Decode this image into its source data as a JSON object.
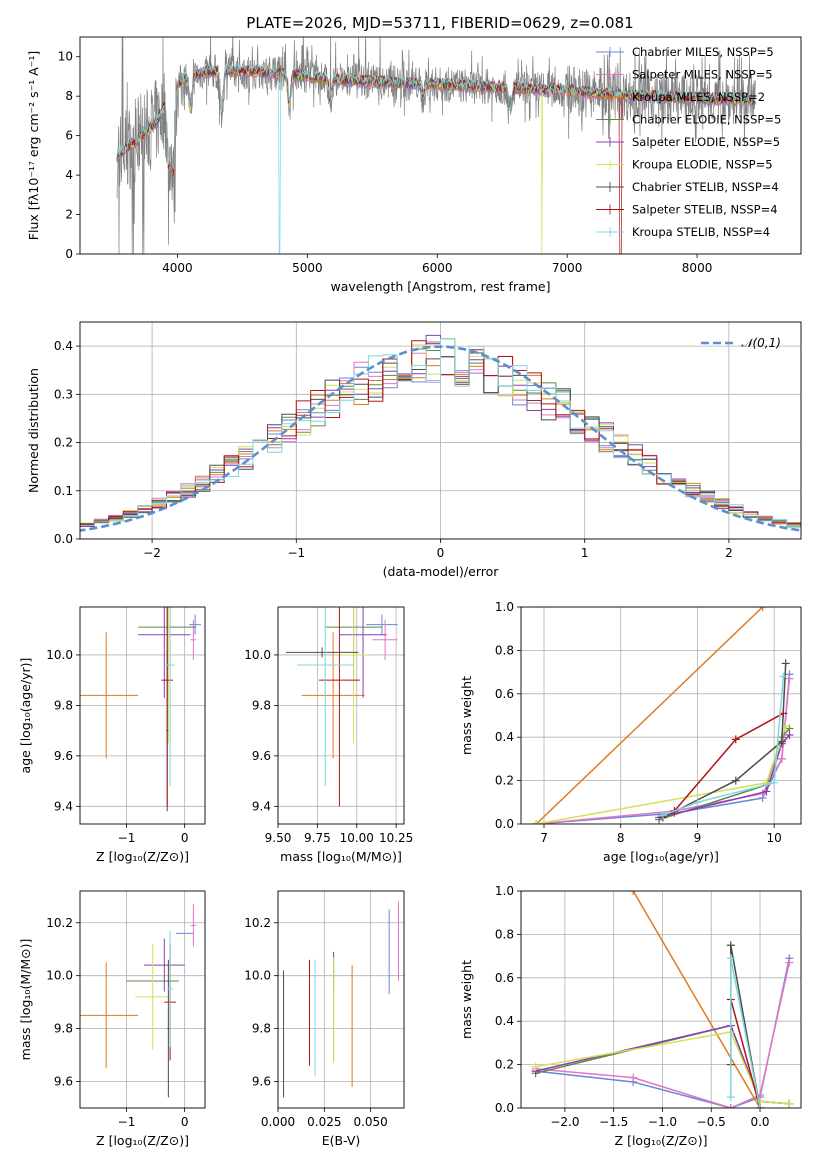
{
  "figure_title": "PLATE=2026, MJD=53711, FIBERID=0629, z=0.081",
  "colors": {
    "Chabrier MILES": "#6a86d8",
    "Salpeter MILES": "#e377c2",
    "Kroupa MILES": "#e07a1f",
    "Chabrier ELODIE": "#5a8a4a",
    "Salpeter ELODIE": "#8a3fb0",
    "Kroupa ELODIE": "#d4e157",
    "Chabrier STELIB": "#4d4d4d",
    "Salpeter STELIB": "#b0141a",
    "Kroupa STELIB": "#7fd6dc",
    "data": "#808080",
    "normal": "#5b8fd0"
  },
  "chart_data": [
    {
      "id": "spectrum",
      "type": "line",
      "xlabel": "wavelength [Angstrom, rest frame]",
      "ylabel": "Flux [fλ10⁻¹⁷ erg cm⁻² s⁻¹ A⁻¹]",
      "xlim": [
        3250,
        8800
      ],
      "ylim": [
        0,
        11
      ],
      "xticks": [
        4000,
        5000,
        6000,
        7000,
        8000
      ],
      "yticks": [
        0,
        2,
        4,
        6,
        8,
        10
      ],
      "legend_position": "top-right",
      "legend": [
        "Chabrier MILES, NSSP=5",
        "Salpeter MILES, NSSP=5",
        "Kroupa MILES, NSSP=2",
        "Chabrier ELODIE, NSSP=5",
        "Salpeter ELODIE, NSSP=5",
        "Kroupa ELODIE, NSSP=5",
        "Chabrier STELIB, NSSP=4",
        "Salpeter STELIB, NSSP=4",
        "Kroupa STELIB, NSSP=4"
      ],
      "legend_models": [
        "Chabrier MILES",
        "Salpeter MILES",
        "Kroupa MILES",
        "Chabrier ELODIE",
        "Salpeter ELODIE",
        "Kroupa ELODIE",
        "Chabrier STELIB",
        "Salpeter STELIB",
        "Kroupa STELIB"
      ],
      "continuum": [
        [
          3530,
          5.0
        ],
        [
          3700,
          5.8
        ],
        [
          3850,
          6.8
        ],
        [
          3950,
          8.2
        ],
        [
          4050,
          8.9
        ],
        [
          4200,
          9.2
        ],
        [
          4400,
          9.3
        ],
        [
          4700,
          9.2
        ],
        [
          5000,
          9.0
        ],
        [
          5300,
          8.8
        ],
        [
          5600,
          8.7
        ],
        [
          6000,
          8.6
        ],
        [
          6300,
          8.5
        ],
        [
          6600,
          8.4
        ],
        [
          7000,
          8.3
        ],
        [
          7300,
          8.1
        ],
        [
          7600,
          8.0
        ],
        [
          8000,
          7.9
        ],
        [
          8450,
          7.8
        ]
      ],
      "dips": [
        [
          3933,
          4.0
        ],
        [
          3968,
          3.6
        ],
        [
          4101,
          7.2
        ],
        [
          4340,
          7.0
        ],
        [
          4861,
          7.4
        ],
        [
          5175,
          7.8
        ],
        [
          5890,
          8.0
        ],
        [
          6563,
          7.2
        ]
      ],
      "gaps": {
        "Kroupa STELIB": [
          4780,
          4790
        ],
        "Kroupa ELODIE": [
          6800,
          6810
        ],
        "Salpeter STELIB": [
          7400,
          7420
        ]
      }
    },
    {
      "id": "residuals",
      "type": "area",
      "xlabel": "(data-model)/error",
      "ylabel": "Normed distribution",
      "xlim": [
        -2.5,
        2.5
      ],
      "ylim": [
        0,
        0.45
      ],
      "xticks": [
        -2,
        -1,
        0,
        1,
        2
      ],
      "yticks": [
        0.0,
        0.1,
        0.2,
        0.3,
        0.4
      ],
      "legend_position": "top-right",
      "legend": [
        "𝒩(0,1)"
      ],
      "bin_width": 0.1
    },
    {
      "id": "age_vs_Z",
      "type": "scatter",
      "xlabel": "Z [log₁₀(Z/Z⊙)]",
      "ylabel": "age  [log₁₀(age/yr)]",
      "xlim": [
        -1.8,
        0.35
      ],
      "ylim": [
        9.33,
        10.19
      ],
      "xticks": [
        -1,
        0
      ],
      "yticks": [
        9.4,
        9.6,
        9.8,
        10.0
      ],
      "points": [
        {
          "model": "Chabrier MILES",
          "x": 0.18,
          "y": 10.12,
          "xerr": 0.1,
          "yerr": 0.04
        },
        {
          "model": "Salpeter MILES",
          "x": 0.15,
          "y": 10.06,
          "xerr": 0.05,
          "yerr": 0.08
        },
        {
          "model": "Kroupa MILES",
          "x": -1.35,
          "y": 9.84,
          "xerr": 0.55,
          "yerr": 0.25
        },
        {
          "model": "Chabrier ELODIE",
          "x": -0.3,
          "y": 10.11,
          "xerr": 0.5,
          "yerr": 0.2
        },
        {
          "model": "Salpeter ELODIE",
          "x": -0.35,
          "y": 10.08,
          "xerr": 0.45,
          "yerr": 0.25
        },
        {
          "model": "Kroupa ELODIE",
          "x": -0.28,
          "y": 10.0,
          "xerr": 0.05,
          "yerr": 0.35
        },
        {
          "model": "Chabrier STELIB",
          "x": -0.3,
          "y": 9.7,
          "xerr": 0.02,
          "yerr": 0.32
        },
        {
          "model": "Salpeter STELIB",
          "x": -0.3,
          "y": 9.9,
          "xerr": 0.1,
          "yerr": 0.5
        },
        {
          "model": "Kroupa STELIB",
          "x": -0.25,
          "y": 9.96,
          "xerr": 0.08,
          "yerr": 0.48
        }
      ]
    },
    {
      "id": "age_vs_mass",
      "type": "scatter",
      "xlabel": "mass [log₁₀(M/M⊙)]",
      "ylabel": "",
      "xlim": [
        9.5,
        10.3
      ],
      "ylim": [
        9.33,
        10.19
      ],
      "xticks": [
        9.5,
        9.75,
        10.0,
        10.25
      ],
      "xticklabels": [
        "9.50",
        "9.75",
        "10.00",
        "10.25"
      ],
      "yticks": [
        9.4,
        9.6,
        9.8,
        10.0
      ],
      "points": [
        {
          "model": "Chabrier MILES",
          "x": 10.16,
          "y": 10.12,
          "xerr": 0.1,
          "yerr": 0.04
        },
        {
          "model": "Salpeter MILES",
          "x": 10.18,
          "y": 10.06,
          "xerr": 0.08,
          "yerr": 0.08
        },
        {
          "model": "Kroupa MILES",
          "x": 9.85,
          "y": 9.84,
          "xerr": 0.2,
          "yerr": 0.25
        },
        {
          "model": "Chabrier ELODIE",
          "x": 9.98,
          "y": 10.11,
          "xerr": 0.18,
          "yerr": 0.2
        },
        {
          "model": "Salpeter ELODIE",
          "x": 10.04,
          "y": 10.08,
          "xerr": 0.15,
          "yerr": 0.25
        },
        {
          "model": "Kroupa ELODIE",
          "x": 9.98,
          "y": 10.0,
          "xerr": 0.1,
          "yerr": 0.35
        },
        {
          "model": "Chabrier STELIB",
          "x": 9.78,
          "y": 10.01,
          "xerr": 0.23,
          "yerr": 0.02
        },
        {
          "model": "Salpeter STELIB",
          "x": 9.89,
          "y": 9.9,
          "xerr": 0.13,
          "yerr": 0.5
        },
        {
          "model": "Kroupa STELIB",
          "x": 9.8,
          "y": 9.96,
          "xerr": 0.18,
          "yerr": 0.48
        }
      ]
    },
    {
      "id": "mass_weight_vs_age",
      "type": "line",
      "xlabel": "age  [log₁₀(age/yr)]",
      "ylabel": "mass weight",
      "xlim": [
        6.7,
        10.35
      ],
      "ylim": [
        0,
        1
      ],
      "xticks": [
        7,
        8,
        9,
        10
      ],
      "yticks": [
        0.0,
        0.2,
        0.4,
        0.6,
        0.8,
        1.0
      ],
      "series": [
        {
          "model": "Chabrier MILES",
          "x": [
            6.9,
            8.7,
            9.85,
            10.1,
            10.2
          ],
          "y": [
            0.0,
            0.05,
            0.12,
            0.3,
            0.69
          ]
        },
        {
          "model": "Salpeter MILES",
          "x": [
            6.9,
            8.7,
            9.85,
            10.1,
            10.2
          ],
          "y": [
            0.0,
            0.06,
            0.14,
            0.3,
            0.67
          ]
        },
        {
          "model": "Kroupa MILES",
          "x": [
            6.9,
            9.85
          ],
          "y": [
            0.0,
            1.0
          ]
        },
        {
          "model": "Chabrier ELODIE",
          "x": [
            8.5,
            9.9,
            10.1,
            10.2
          ],
          "y": [
            0.02,
            0.18,
            0.4,
            0.44
          ]
        },
        {
          "model": "Salpeter ELODIE",
          "x": [
            8.5,
            9.9,
            10.1,
            10.2
          ],
          "y": [
            0.03,
            0.15,
            0.37,
            0.41
          ]
        },
        {
          "model": "Kroupa ELODIE",
          "x": [
            6.9,
            9.9,
            10.05,
            10.15
          ],
          "y": [
            0.0,
            0.19,
            0.35,
            0.45
          ]
        },
        {
          "model": "Chabrier STELIB",
          "x": [
            8.55,
            9.5,
            10.1,
            10.15
          ],
          "y": [
            0.03,
            0.2,
            0.38,
            0.74
          ]
        },
        {
          "model": "Salpeter STELIB",
          "x": [
            8.7,
            9.5,
            10.12
          ],
          "y": [
            0.06,
            0.39,
            0.51
          ]
        },
        {
          "model": "Kroupa STELIB",
          "x": [
            8.55,
            9.0,
            10.0,
            10.12
          ],
          "y": [
            0.04,
            0.1,
            0.19,
            0.68
          ]
        }
      ]
    },
    {
      "id": "mass_vs_Z",
      "type": "scatter",
      "xlabel": "Z [log₁₀(Z/Z⊙)]",
      "ylabel": "mass [log₁₀(M/M⊙)]",
      "xlim": [
        -1.8,
        0.35
      ],
      "ylim": [
        9.5,
        10.32
      ],
      "xticks": [
        -1,
        0
      ],
      "yticks": [
        9.6,
        9.8,
        10.0,
        10.2
      ],
      "points": [
        {
          "model": "Chabrier MILES",
          "x": 0.0,
          "y": 10.16,
          "xerr": 0.15,
          "yerr": 0.0
        },
        {
          "model": "Salpeter MILES",
          "x": 0.15,
          "y": 10.19,
          "xerr": 0.05,
          "yerr": 0.08
        },
        {
          "model": "Kroupa MILES",
          "x": -1.35,
          "y": 9.85,
          "xerr": 0.55,
          "yerr": 0.2
        },
        {
          "model": "Chabrier ELODIE",
          "x": -0.55,
          "y": 9.98,
          "xerr": 0.45,
          "yerr": 0.0
        },
        {
          "model": "Salpeter ELODIE",
          "x": -0.35,
          "y": 10.04,
          "xerr": 0.35,
          "yerr": 0.1
        },
        {
          "model": "Kroupa ELODIE",
          "x": -0.55,
          "y": 9.92,
          "xerr": 0.3,
          "yerr": 0.2
        },
        {
          "model": "Chabrier STELIB",
          "x": -0.28,
          "y": 9.8,
          "xerr": 0.02,
          "yerr": 0.26
        },
        {
          "model": "Salpeter STELIB",
          "x": -0.25,
          "y": 9.9,
          "xerr": 0.1,
          "yerr": 0.22
        },
        {
          "model": "Kroupa STELIB",
          "x": -0.25,
          "y": 9.95,
          "xerr": 0.05,
          "yerr": 0.22
        }
      ]
    },
    {
      "id": "mass_vs_ebv",
      "type": "scatter",
      "xlabel": "E(B-V)",
      "ylabel": "",
      "xlim": [
        0.0,
        0.068
      ],
      "ylim": [
        9.5,
        10.32
      ],
      "xticks": [
        0.0,
        0.025,
        0.05
      ],
      "xticklabels": [
        "0.000",
        "0.025",
        "0.050"
      ],
      "yticks": [
        9.6,
        9.8,
        10.0,
        10.2
      ],
      "points": [
        {
          "model": "Chabrier MILES",
          "x": 0.06,
          "y": 10.09,
          "xerr": 0.0,
          "yerr": 0.16
        },
        {
          "model": "Salpeter MILES",
          "x": 0.065,
          "y": 10.13,
          "xerr": 0.0,
          "yerr": 0.15
        },
        {
          "model": "Kroupa MILES",
          "x": 0.04,
          "y": 9.81,
          "xerr": 0.0,
          "yerr": 0.23
        },
        {
          "model": "Chabrier ELODIE",
          "x": 0.03,
          "y": 9.88,
          "xerr": 0.0,
          "yerr": 0.2
        },
        {
          "model": "Salpeter ELODIE",
          "x": 0.03,
          "y": 10.02,
          "xerr": 0.0,
          "yerr": 0.07
        },
        {
          "model": "Kroupa ELODIE",
          "x": 0.03,
          "y": 9.87,
          "xerr": 0.0,
          "yerr": 0.2
        },
        {
          "model": "Chabrier STELIB",
          "x": 0.003,
          "y": 9.78,
          "xerr": 0.0,
          "yerr": 0.24
        },
        {
          "model": "Salpeter STELIB",
          "x": 0.017,
          "y": 9.86,
          "xerr": 0.0,
          "yerr": 0.2
        },
        {
          "model": "Kroupa STELIB",
          "x": 0.02,
          "y": 9.84,
          "xerr": 0.0,
          "yerr": 0.22
        }
      ]
    },
    {
      "id": "mass_weight_vs_Z",
      "type": "line",
      "xlabel": "Z [log₁₀(Z/Z⊙)]",
      "ylabel": "mass weight",
      "xlim": [
        -2.45,
        0.42
      ],
      "ylim": [
        0,
        1
      ],
      "xticks": [
        -2.0,
        -1.5,
        -1.0,
        -0.5,
        0.0
      ],
      "xticklabels": [
        "−2.0",
        "−1.5",
        "−1.0",
        "−0.5",
        "0.0"
      ],
      "yticks": [
        0.0,
        0.2,
        0.4,
        0.6,
        0.8,
        1.0
      ],
      "series": [
        {
          "model": "Chabrier MILES",
          "x": [
            -2.3,
            -1.3,
            -0.3,
            0.0,
            0.3
          ],
          "y": [
            0.17,
            0.12,
            0.0,
            0.05,
            0.69
          ]
        },
        {
          "model": "Salpeter MILES",
          "x": [
            -2.3,
            -1.3,
            -0.3,
            0.0,
            0.3
          ],
          "y": [
            0.18,
            0.14,
            0.0,
            0.06,
            0.67
          ]
        },
        {
          "model": "Kroupa MILES",
          "x": [
            -1.3,
            0.0
          ],
          "y": [
            1.0,
            0.0
          ]
        },
        {
          "model": "Chabrier ELODIE",
          "x": [
            -2.3,
            -0.3,
            0.0,
            0.3
          ],
          "y": [
            0.16,
            0.38,
            0.03,
            0.02
          ]
        },
        {
          "model": "Salpeter ELODIE",
          "x": [
            -2.3,
            -0.3,
            0.0,
            0.3
          ],
          "y": [
            0.17,
            0.38,
            0.03,
            0.02
          ]
        },
        {
          "model": "Kroupa ELODIE",
          "x": [
            -2.3,
            -0.3,
            0.0,
            0.3
          ],
          "y": [
            0.19,
            0.35,
            0.03,
            0.02
          ]
        },
        {
          "model": "Chabrier STELIB",
          "x": [
            -0.3,
            -0.3,
            0.0
          ],
          "y": [
            0.2,
            0.75,
            0.0
          ]
        },
        {
          "model": "Salpeter STELIB",
          "x": [
            -0.3,
            0.0
          ],
          "y": [
            0.5,
            0.0
          ]
        },
        {
          "model": "Kroupa STELIB",
          "x": [
            -0.3,
            -0.3,
            0.0
          ],
          "y": [
            0.05,
            0.69,
            0.0
          ]
        }
      ]
    }
  ]
}
